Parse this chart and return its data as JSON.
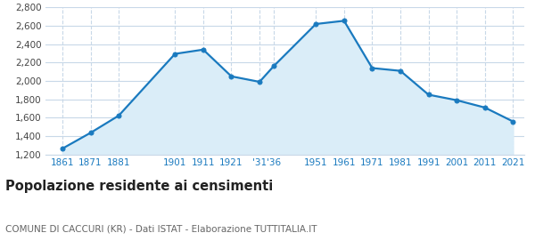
{
  "years": [
    1861,
    1871,
    1881,
    1901,
    1911,
    1921,
    1931,
    1936,
    1951,
    1961,
    1971,
    1981,
    1991,
    2001,
    2011,
    2021
  ],
  "population": [
    1263,
    1435,
    1622,
    2295,
    2341,
    2050,
    1990,
    2160,
    2620,
    2655,
    2140,
    2110,
    1850,
    1790,
    1710,
    1558
  ],
  "ylim": [
    1200,
    2800
  ],
  "yticks": [
    1200,
    1400,
    1600,
    1800,
    2000,
    2200,
    2400,
    2600,
    2800
  ],
  "x_tick_positions": [
    1861,
    1871,
    1881,
    1901,
    1911,
    1921,
    1931,
    1936,
    1951,
    1961,
    1971,
    1981,
    1991,
    2001,
    2011,
    2021
  ],
  "x_tick_labels": [
    "1861",
    "1871",
    "1881",
    "1901",
    "1911",
    "1921",
    "'31",
    "'36",
    "1951",
    "1961",
    "1971",
    "1981",
    "1991",
    "2001",
    "2011",
    "2021"
  ],
  "line_color": "#1a7abf",
  "fill_color": "#daedf8",
  "marker_color": "#1a7abf",
  "bg_color": "#ffffff",
  "grid_color": "#c8d8e8",
  "title": "Popolazione residente ai censimenti",
  "subtitle": "COMUNE DI CACCURI (KR) - Dati ISTAT - Elaborazione TUTTITALIA.IT",
  "title_fontsize": 10.5,
  "subtitle_fontsize": 7.5,
  "tick_fontsize": 7.5,
  "xlim_left": 1855,
  "xlim_right": 2025
}
